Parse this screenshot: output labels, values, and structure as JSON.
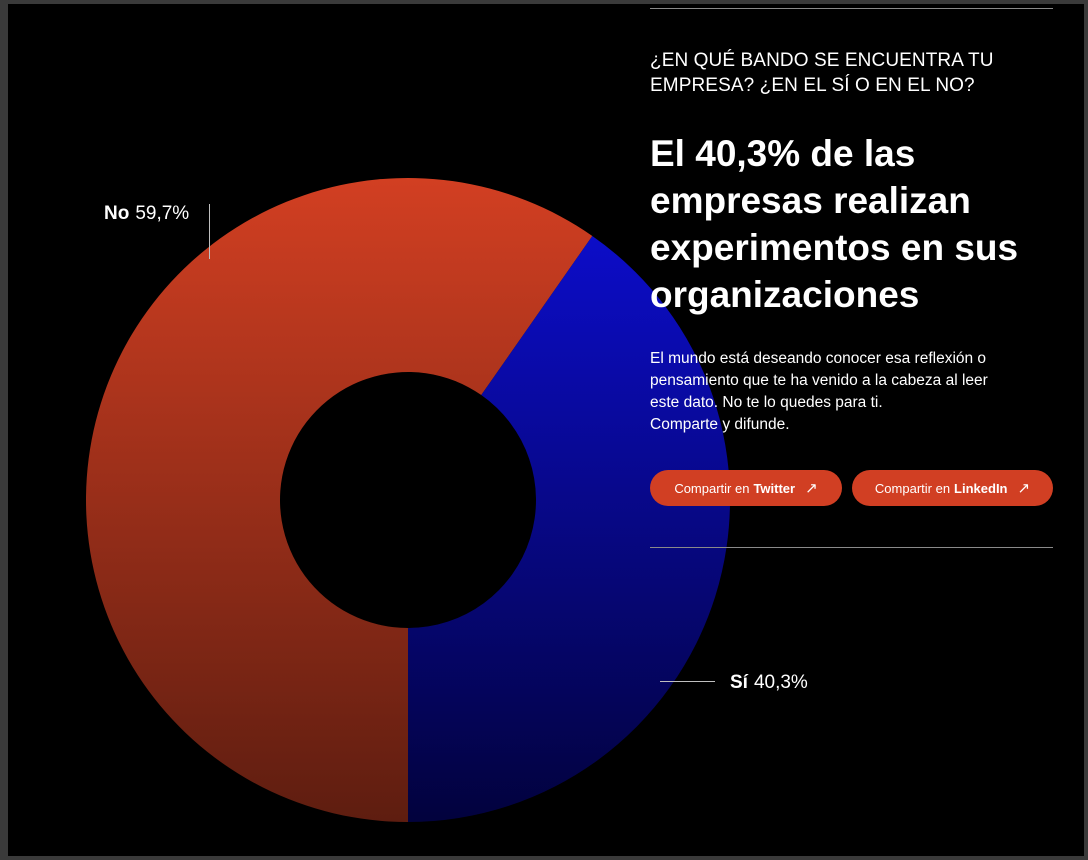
{
  "chart_data": {
    "type": "pie",
    "donut": true,
    "slices": [
      {
        "label": "No",
        "value_text": "59,7%",
        "value": 59.7,
        "color": "#d23f22",
        "color_dark": "#5e1d10"
      },
      {
        "label": "Sí",
        "value_text": "40,3%",
        "value": 40.3,
        "color": "#0d0ed6",
        "color_dark": "#02023d"
      }
    ]
  },
  "content": {
    "eyebrow": "¿EN QUÉ BANDO SE ENCUENTRA TU EMPRESA? ¿EN EL SÍ O EN EL NO?",
    "headline": "El 40,3% de las empresas realizan experimentos en sus organizaciones",
    "body": [
      "El mundo está deseando conocer esa reflexión o",
      "pensamiento que te ha venido a la cabeza al leer",
      "este dato. No te lo quedes para ti.",
      "Comparte y difunde."
    ]
  },
  "share": {
    "twitter": {
      "prefix": "Compartir en",
      "network": "Twitter",
      "arrow": "↗"
    },
    "linkedin": {
      "prefix": "Compartir en",
      "network": "LinkedIn",
      "arrow": "↗"
    }
  }
}
